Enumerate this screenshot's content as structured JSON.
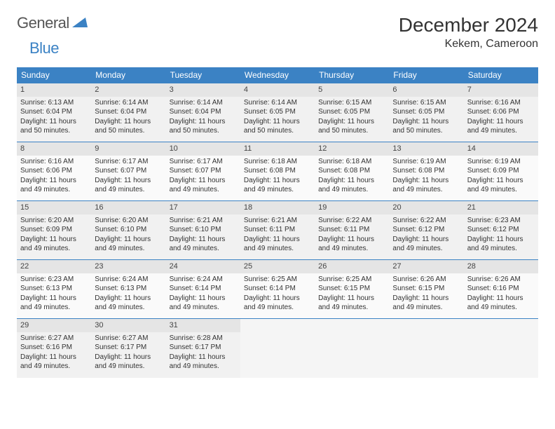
{
  "logo": {
    "text1": "General",
    "text2": "Blue"
  },
  "title": "December 2024",
  "location": "Kekem, Cameroon",
  "colors": {
    "header_bg": "#3b82c4",
    "header_text": "#ffffff",
    "border": "#3b82c4",
    "daynum_bg": "#e5e5e5",
    "cell_bg_a": "#f1f1f1",
    "cell_bg_b": "#fafafa"
  },
  "day_headers": [
    "Sunday",
    "Monday",
    "Tuesday",
    "Wednesday",
    "Thursday",
    "Friday",
    "Saturday"
  ],
  "weeks": [
    [
      {
        "n": "1",
        "sr": "Sunrise: 6:13 AM",
        "ss": "Sunset: 6:04 PM",
        "dl": "Daylight: 11 hours and 50 minutes."
      },
      {
        "n": "2",
        "sr": "Sunrise: 6:14 AM",
        "ss": "Sunset: 6:04 PM",
        "dl": "Daylight: 11 hours and 50 minutes."
      },
      {
        "n": "3",
        "sr": "Sunrise: 6:14 AM",
        "ss": "Sunset: 6:04 PM",
        "dl": "Daylight: 11 hours and 50 minutes."
      },
      {
        "n": "4",
        "sr": "Sunrise: 6:14 AM",
        "ss": "Sunset: 6:05 PM",
        "dl": "Daylight: 11 hours and 50 minutes."
      },
      {
        "n": "5",
        "sr": "Sunrise: 6:15 AM",
        "ss": "Sunset: 6:05 PM",
        "dl": "Daylight: 11 hours and 50 minutes."
      },
      {
        "n": "6",
        "sr": "Sunrise: 6:15 AM",
        "ss": "Sunset: 6:05 PM",
        "dl": "Daylight: 11 hours and 50 minutes."
      },
      {
        "n": "7",
        "sr": "Sunrise: 6:16 AM",
        "ss": "Sunset: 6:06 PM",
        "dl": "Daylight: 11 hours and 49 minutes."
      }
    ],
    [
      {
        "n": "8",
        "sr": "Sunrise: 6:16 AM",
        "ss": "Sunset: 6:06 PM",
        "dl": "Daylight: 11 hours and 49 minutes."
      },
      {
        "n": "9",
        "sr": "Sunrise: 6:17 AM",
        "ss": "Sunset: 6:07 PM",
        "dl": "Daylight: 11 hours and 49 minutes."
      },
      {
        "n": "10",
        "sr": "Sunrise: 6:17 AM",
        "ss": "Sunset: 6:07 PM",
        "dl": "Daylight: 11 hours and 49 minutes."
      },
      {
        "n": "11",
        "sr": "Sunrise: 6:18 AM",
        "ss": "Sunset: 6:08 PM",
        "dl": "Daylight: 11 hours and 49 minutes."
      },
      {
        "n": "12",
        "sr": "Sunrise: 6:18 AM",
        "ss": "Sunset: 6:08 PM",
        "dl": "Daylight: 11 hours and 49 minutes."
      },
      {
        "n": "13",
        "sr": "Sunrise: 6:19 AM",
        "ss": "Sunset: 6:08 PM",
        "dl": "Daylight: 11 hours and 49 minutes."
      },
      {
        "n": "14",
        "sr": "Sunrise: 6:19 AM",
        "ss": "Sunset: 6:09 PM",
        "dl": "Daylight: 11 hours and 49 minutes."
      }
    ],
    [
      {
        "n": "15",
        "sr": "Sunrise: 6:20 AM",
        "ss": "Sunset: 6:09 PM",
        "dl": "Daylight: 11 hours and 49 minutes."
      },
      {
        "n": "16",
        "sr": "Sunrise: 6:20 AM",
        "ss": "Sunset: 6:10 PM",
        "dl": "Daylight: 11 hours and 49 minutes."
      },
      {
        "n": "17",
        "sr": "Sunrise: 6:21 AM",
        "ss": "Sunset: 6:10 PM",
        "dl": "Daylight: 11 hours and 49 minutes."
      },
      {
        "n": "18",
        "sr": "Sunrise: 6:21 AM",
        "ss": "Sunset: 6:11 PM",
        "dl": "Daylight: 11 hours and 49 minutes."
      },
      {
        "n": "19",
        "sr": "Sunrise: 6:22 AM",
        "ss": "Sunset: 6:11 PM",
        "dl": "Daylight: 11 hours and 49 minutes."
      },
      {
        "n": "20",
        "sr": "Sunrise: 6:22 AM",
        "ss": "Sunset: 6:12 PM",
        "dl": "Daylight: 11 hours and 49 minutes."
      },
      {
        "n": "21",
        "sr": "Sunrise: 6:23 AM",
        "ss": "Sunset: 6:12 PM",
        "dl": "Daylight: 11 hours and 49 minutes."
      }
    ],
    [
      {
        "n": "22",
        "sr": "Sunrise: 6:23 AM",
        "ss": "Sunset: 6:13 PM",
        "dl": "Daylight: 11 hours and 49 minutes."
      },
      {
        "n": "23",
        "sr": "Sunrise: 6:24 AM",
        "ss": "Sunset: 6:13 PM",
        "dl": "Daylight: 11 hours and 49 minutes."
      },
      {
        "n": "24",
        "sr": "Sunrise: 6:24 AM",
        "ss": "Sunset: 6:14 PM",
        "dl": "Daylight: 11 hours and 49 minutes."
      },
      {
        "n": "25",
        "sr": "Sunrise: 6:25 AM",
        "ss": "Sunset: 6:14 PM",
        "dl": "Daylight: 11 hours and 49 minutes."
      },
      {
        "n": "26",
        "sr": "Sunrise: 6:25 AM",
        "ss": "Sunset: 6:15 PM",
        "dl": "Daylight: 11 hours and 49 minutes."
      },
      {
        "n": "27",
        "sr": "Sunrise: 6:26 AM",
        "ss": "Sunset: 6:15 PM",
        "dl": "Daylight: 11 hours and 49 minutes."
      },
      {
        "n": "28",
        "sr": "Sunrise: 6:26 AM",
        "ss": "Sunset: 6:16 PM",
        "dl": "Daylight: 11 hours and 49 minutes."
      }
    ],
    [
      {
        "n": "29",
        "sr": "Sunrise: 6:27 AM",
        "ss": "Sunset: 6:16 PM",
        "dl": "Daylight: 11 hours and 49 minutes."
      },
      {
        "n": "30",
        "sr": "Sunrise: 6:27 AM",
        "ss": "Sunset: 6:17 PM",
        "dl": "Daylight: 11 hours and 49 minutes."
      },
      {
        "n": "31",
        "sr": "Sunrise: 6:28 AM",
        "ss": "Sunset: 6:17 PM",
        "dl": "Daylight: 11 hours and 49 minutes."
      },
      null,
      null,
      null,
      null
    ]
  ]
}
